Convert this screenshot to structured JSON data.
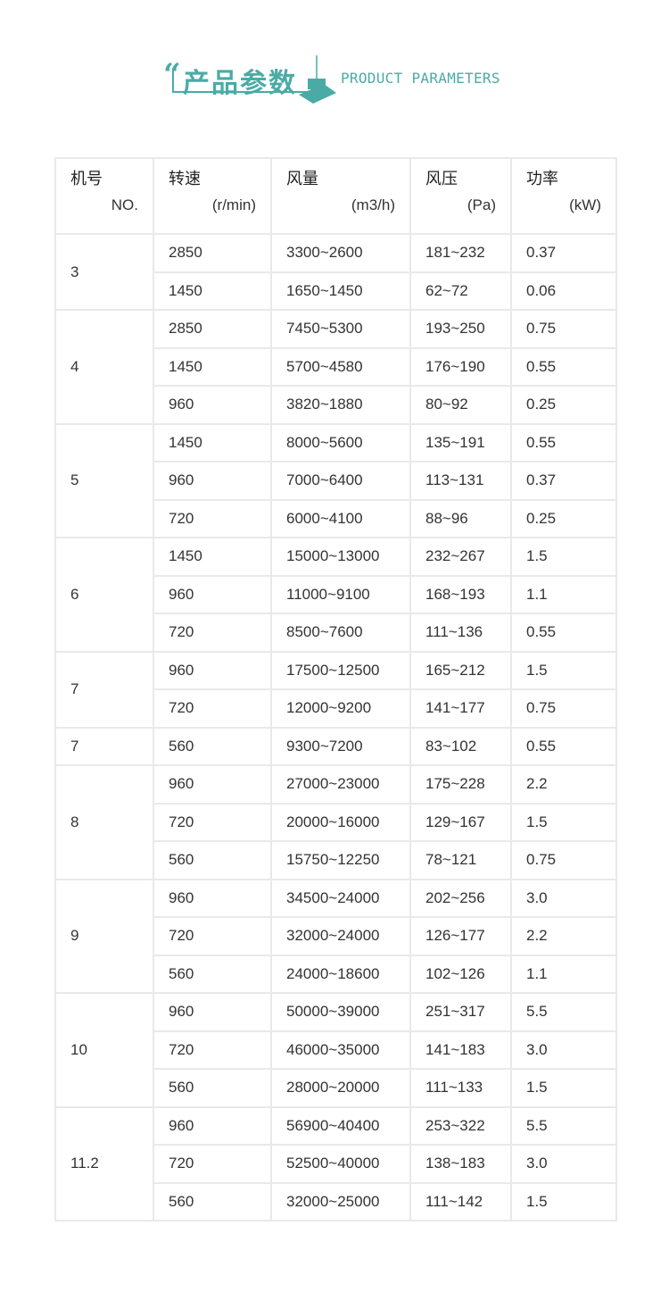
{
  "banner": {
    "quote": "“",
    "title_zh": "产品参数",
    "title_en": "PRODUCT PARAMETERS",
    "accent_color": "#4aaba6"
  },
  "table": {
    "headers": [
      {
        "zh": "机号",
        "unit": "NO."
      },
      {
        "zh": "转速",
        "unit": "(r/min)"
      },
      {
        "zh": "风量",
        "unit": "(m3/h)"
      },
      {
        "zh": "风压",
        "unit": "(Pa)"
      },
      {
        "zh": "功率",
        "unit": "(kW)"
      }
    ],
    "groups": [
      {
        "no": "3",
        "rows": [
          [
            "2850",
            "3300~2600",
            "181~232",
            "0.37"
          ],
          [
            "1450",
            "1650~1450",
            "62~72",
            "0.06"
          ]
        ]
      },
      {
        "no": "4",
        "rows": [
          [
            "2850",
            "7450~5300",
            "193~250",
            "0.75"
          ],
          [
            "1450",
            "5700~4580",
            "176~190",
            "0.55"
          ],
          [
            "960",
            "3820~1880",
            "80~92",
            "0.25"
          ]
        ]
      },
      {
        "no": "5",
        "rows": [
          [
            "1450",
            "8000~5600",
            "135~191",
            "0.55"
          ],
          [
            "960",
            "7000~6400",
            "113~131",
            "0.37"
          ],
          [
            "720",
            "6000~4100",
            "88~96",
            "0.25"
          ]
        ]
      },
      {
        "no": "6",
        "rows": [
          [
            "1450",
            "15000~13000",
            "232~267",
            "1.5"
          ],
          [
            "960",
            "11000~9100",
            "168~193",
            "1.1"
          ],
          [
            "720",
            "8500~7600",
            "111~136",
            "0.55"
          ]
        ]
      },
      {
        "no": "7",
        "rows": [
          [
            "960",
            "17500~12500",
            "165~212",
            "1.5"
          ],
          [
            "720",
            "12000~9200",
            "141~177",
            "0.75"
          ]
        ]
      },
      {
        "no": "7",
        "rows": [
          [
            "560",
            "9300~7200",
            "83~102",
            "0.55"
          ]
        ]
      },
      {
        "no": "8",
        "rows": [
          [
            "960",
            "27000~23000",
            "175~228",
            "2.2"
          ],
          [
            "720",
            "20000~16000",
            "129~167",
            "1.5"
          ],
          [
            "560",
            "15750~12250",
            "78~121",
            "0.75"
          ]
        ]
      },
      {
        "no": "9",
        "rows": [
          [
            "960",
            "34500~24000",
            "202~256",
            "3.0"
          ],
          [
            "720",
            "32000~24000",
            "126~177",
            "2.2"
          ],
          [
            "560",
            "24000~18600",
            "102~126",
            "1.1"
          ]
        ]
      },
      {
        "no": "10",
        "rows": [
          [
            "960",
            "50000~39000",
            "251~317",
            "5.5"
          ],
          [
            "720",
            "46000~35000",
            "141~183",
            "3.0"
          ],
          [
            "560",
            "28000~20000",
            "111~133",
            "1.5"
          ]
        ]
      },
      {
        "no": "11.2",
        "rows": [
          [
            "960",
            "56900~40400",
            "253~322",
            "5.5"
          ],
          [
            "720",
            "52500~40000",
            "138~183",
            "3.0"
          ],
          [
            "560",
            "32000~25000",
            "111~142",
            "1.5"
          ]
        ]
      }
    ]
  }
}
